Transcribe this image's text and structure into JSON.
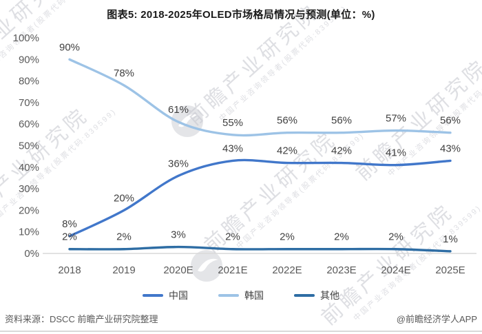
{
  "chart_data": {
    "type": "line",
    "title": "图表5: 2018-2025年OLED市场格局情况与预测(单位：%)",
    "categories": [
      "2018",
      "2019",
      "2020E",
      "2021E",
      "2022E",
      "2023E",
      "2024E",
      "2025E"
    ],
    "series": [
      {
        "name": "中国",
        "color": "#4177ca",
        "values": [
          8,
          20,
          36,
          43,
          42,
          42,
          41,
          43
        ]
      },
      {
        "name": "韩国",
        "color": "#9dc3e6",
        "values": [
          90,
          78,
          61,
          55,
          56,
          56,
          57,
          56
        ]
      },
      {
        "name": "其他",
        "color": "#2e6da4",
        "values": [
          2,
          2,
          3,
          2,
          2,
          2,
          2,
          1
        ]
      }
    ],
    "unit": "%",
    "ylim": [
      0,
      100
    ],
    "ytick_labels": [
      "100%",
      "90%",
      "80%",
      "70%",
      "60%",
      "50%",
      "40%",
      "30%",
      "20%",
      "10%",
      "0%"
    ],
    "xlabel": "",
    "ylabel": "",
    "grid": false,
    "legend_position": "bottom",
    "axis_color": "#d9d9d9",
    "label_color": "#404040",
    "tick_color": "#595959"
  },
  "footer": {
    "source": "资料来源：DSCC 前瞻产业研究院整理",
    "credit": "@前瞻经济学人APP"
  },
  "watermark": {
    "text": "前瞻产业研究院",
    "subtext": "中国产业咨询领导者(股票代码:839599)"
  }
}
